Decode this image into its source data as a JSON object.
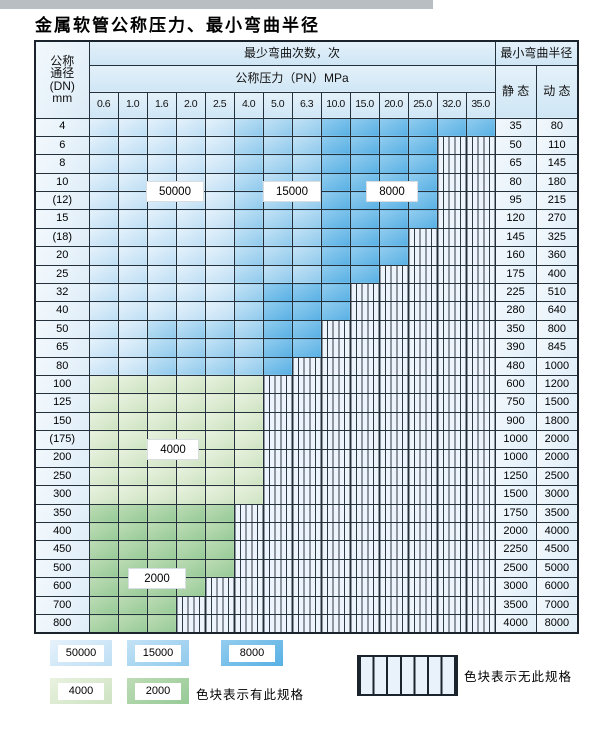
{
  "title": "金属软管公称压力、最小弯曲半径",
  "table": {
    "header": {
      "dn_label_lines": [
        "公称",
        "通径",
        "(DN)",
        "mm"
      ],
      "bend_cycles_label": "最少弯曲次数，次",
      "pressure_label": "公称压力（PN）MPa",
      "min_bend_radius_label": "最小弯曲半径",
      "static_label": "静 态",
      "dynamic_label": "动 态"
    },
    "pressure_columns": [
      "0.6",
      "1.0",
      "1.6",
      "2.0",
      "2.5",
      "4.0",
      "5.0",
      "6.3",
      "10.0",
      "15.0",
      "20.0",
      "25.0",
      "32.0",
      "35.0"
    ],
    "zone_meaning": {
      "L": "50000次区(浅蓝)",
      "M": "15000次区(中蓝)",
      "D": "8000次区(深蓝)",
      "G": "4000次区(浅绿)",
      "E": "2000次区(绿)",
      "X": "无此规格(竖线阴影)"
    },
    "rows": [
      {
        "dn": "4",
        "zones": "LLLLLMMMDDDDDD",
        "static": "35",
        "dynamic": "80"
      },
      {
        "dn": "6",
        "zones": "LLLLLMMMDDDDXX",
        "static": "50",
        "dynamic": "110"
      },
      {
        "dn": "8",
        "zones": "LLLLLMMMDDDDXX",
        "static": "65",
        "dynamic": "145"
      },
      {
        "dn": "10",
        "zones": "LLLLLMMMDDDDXX",
        "static": "80",
        "dynamic": "180"
      },
      {
        "dn": "(12)",
        "zones": "LLLLLMMMDDDDXX",
        "static": "95",
        "dynamic": "215"
      },
      {
        "dn": "15",
        "zones": "LLLLLMMMDDDDXX",
        "static": "120",
        "dynamic": "270"
      },
      {
        "dn": "(18)",
        "zones": "LLLLLMMMDDDXXX",
        "static": "145",
        "dynamic": "325"
      },
      {
        "dn": "20",
        "zones": "LLLLLMMMDDDXXX",
        "static": "160",
        "dynamic": "360"
      },
      {
        "dn": "25",
        "zones": "LLLLLMMMDDXXXX",
        "static": "175",
        "dynamic": "400"
      },
      {
        "dn": "32",
        "zones": "LLLLLMDDDXXXXX",
        "static": "225",
        "dynamic": "510"
      },
      {
        "dn": "40",
        "zones": "LLLLLMDDDXXXXX",
        "static": "280",
        "dynamic": "640"
      },
      {
        "dn": "50",
        "zones": "LLMMMMDDXXXXXX",
        "static": "350",
        "dynamic": "800"
      },
      {
        "dn": "65",
        "zones": "LLMMMMDDXXXXXX",
        "static": "390",
        "dynamic": "845"
      },
      {
        "dn": "80",
        "zones": "LLMMMMDXXXXXXX",
        "static": "480",
        "dynamic": "1000"
      },
      {
        "dn": "100",
        "zones": "GGGGGGXXXXXXXX",
        "static": "600",
        "dynamic": "1200"
      },
      {
        "dn": "125",
        "zones": "GGGGGGXXXXXXXX",
        "static": "750",
        "dynamic": "1500"
      },
      {
        "dn": "150",
        "zones": "GGGGGGXXXXXXXX",
        "static": "900",
        "dynamic": "1800"
      },
      {
        "dn": "(175)",
        "zones": "GGGGGGXXXXXXXX",
        "static": "1000",
        "dynamic": "2000"
      },
      {
        "dn": "200",
        "zones": "GGGGGGXXXXXXXX",
        "static": "1000",
        "dynamic": "2000"
      },
      {
        "dn": "250",
        "zones": "GGGGGGXXXXXXXX",
        "static": "1250",
        "dynamic": "2500"
      },
      {
        "dn": "300",
        "zones": "GGGGGGXXXXXXXX",
        "static": "1500",
        "dynamic": "3000"
      },
      {
        "dn": "350",
        "zones": "EEEEEXXXXXXXXX",
        "static": "1750",
        "dynamic": "3500"
      },
      {
        "dn": "400",
        "zones": "EEEEEXXXXXXXXX",
        "static": "2000",
        "dynamic": "4000"
      },
      {
        "dn": "450",
        "zones": "EEEEEXXXXXXXXX",
        "static": "2250",
        "dynamic": "4500"
      },
      {
        "dn": "500",
        "zones": "EEEEEXXXXXXXXX",
        "static": "2500",
        "dynamic": "5000"
      },
      {
        "dn": "600",
        "zones": "EEEEXXXXXXXXXX",
        "static": "3000",
        "dynamic": "6000"
      },
      {
        "dn": "700",
        "zones": "EEEXXXXXXXXXXX",
        "static": "3500",
        "dynamic": "7000"
      },
      {
        "dn": "800",
        "zones": "EEEXXXXXXXXXXX",
        "static": "4000",
        "dynamic": "8000"
      }
    ]
  },
  "overlay_labels": [
    {
      "text": "50000",
      "zone": "L"
    },
    {
      "text": "15000",
      "zone": "M"
    },
    {
      "text": "8000",
      "zone": "D"
    },
    {
      "text": "4000",
      "zone": "G"
    },
    {
      "text": "2000",
      "zone": "E"
    }
  ],
  "legend": {
    "items": [
      {
        "value": "50000",
        "zone": "L"
      },
      {
        "value": "15000",
        "zone": "M"
      },
      {
        "value": "8000",
        "zone": "D"
      },
      {
        "value": "4000",
        "zone": "G"
      },
      {
        "value": "2000",
        "zone": "E"
      }
    ],
    "has_spec_text": "色块表示有此规格",
    "no_spec_text": "色块表示无此规格"
  },
  "colors": {
    "zone_L": "#bddef4",
    "zone_M": "#8fc9ec",
    "zone_D": "#58b0e4",
    "zone_G": "#cde3c1",
    "zone_E": "#96ca96",
    "hatch_bg": "#eef4fb",
    "border": "#24303a",
    "header_bg": "#d8eaf7"
  }
}
